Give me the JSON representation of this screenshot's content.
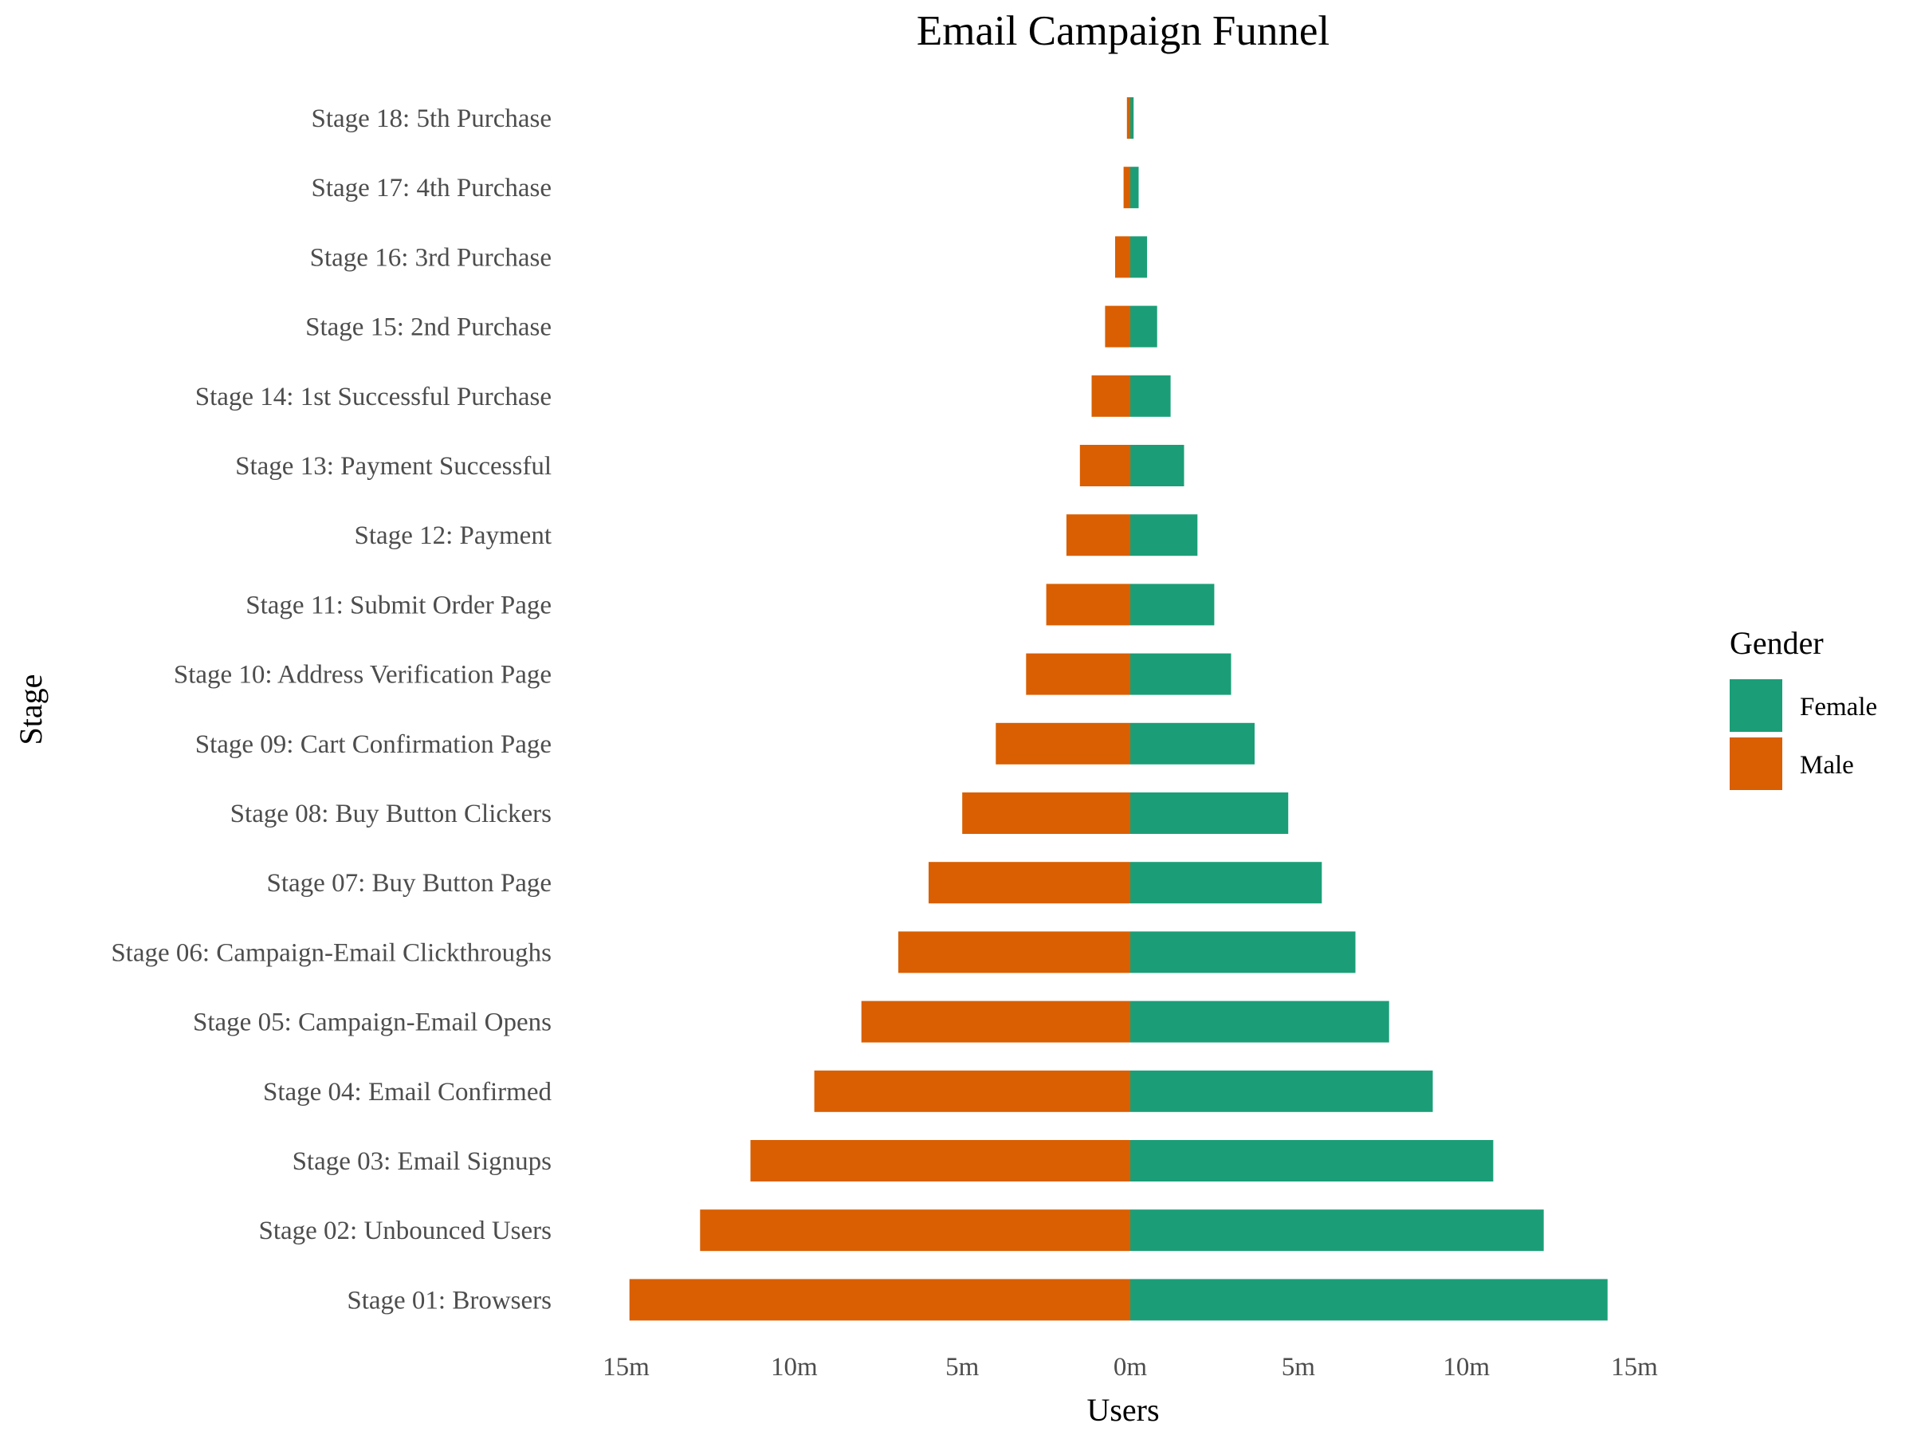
{
  "chart_data": {
    "type": "bar",
    "orientation": "horizontal",
    "layout": "diverging-funnel",
    "title": "Email Campaign Funnel",
    "xlabel": "Users",
    "ylabel": "Stage",
    "xlim": [
      -15,
      15
    ],
    "x_unit": "millions",
    "x_ticks": [
      -15,
      -10,
      -5,
      0,
      5,
      10,
      15
    ],
    "x_tick_labels": [
      "15m",
      "10m",
      "5m",
      "0m",
      "5m",
      "10m",
      "15m"
    ],
    "grid": false,
    "categories": [
      "Stage 01: Browsers",
      "Stage 02: Unbounced Users",
      "Stage 03: Email Signups",
      "Stage 04: Email Confirmed",
      "Stage 05: Campaign-Email Opens",
      "Stage 06: Campaign-Email Clickthroughs",
      "Stage 07: Buy Button Page",
      "Stage 08: Buy Button Clickers",
      "Stage 09: Cart Confirmation Page",
      "Stage 10: Address Verification Page",
      "Stage 11: Submit Order Page",
      "Stage 12: Payment",
      "Stage 13: Payment Successful",
      "Stage 14: 1st Successful Purchase",
      "Stage 15: 2nd Purchase",
      "Stage 16: 3rd Purchase",
      "Stage 17: 4th Purchase",
      "Stage 18: 5th Purchase"
    ],
    "series": [
      {
        "name": "Female",
        "color": "#1b9e77",
        "values": [
          14.2,
          12.3,
          10.8,
          9.0,
          7.7,
          6.7,
          5.7,
          4.7,
          3.7,
          3.0,
          2.5,
          2.0,
          1.6,
          1.2,
          0.8,
          0.5,
          0.25,
          0.1
        ]
      },
      {
        "name": "Male",
        "color": "#d95f02",
        "values": [
          -14.9,
          -12.8,
          -11.3,
          -9.4,
          -8.0,
          -6.9,
          -6.0,
          -5.0,
          -4.0,
          -3.1,
          -2.5,
          -1.9,
          -1.5,
          -1.15,
          -0.75,
          -0.45,
          -0.2,
          -0.1
        ]
      }
    ],
    "legend": {
      "title": "Gender",
      "position": "right",
      "labels": [
        "Female",
        "Male"
      ]
    }
  }
}
